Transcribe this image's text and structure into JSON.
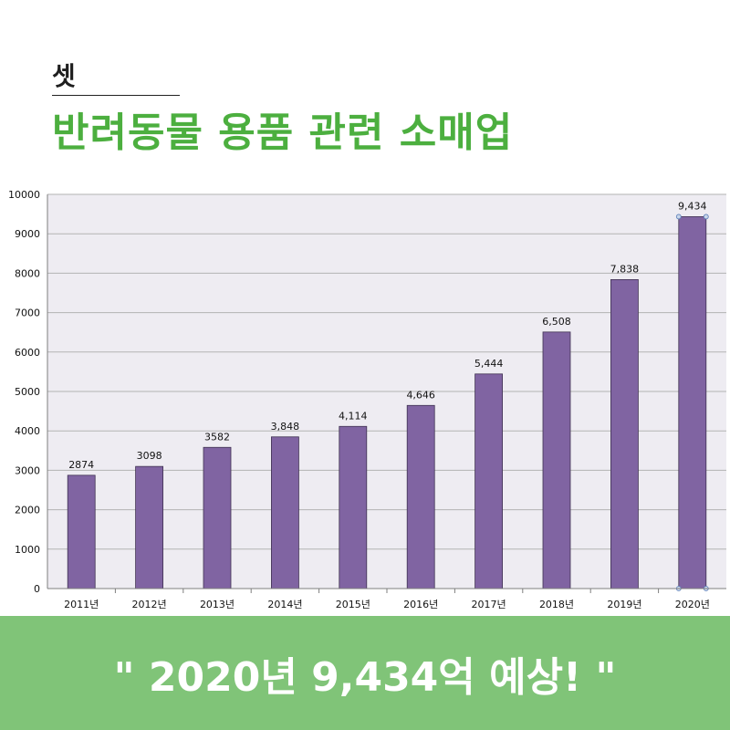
{
  "header": {
    "kicker": "셋",
    "title": "반려동물 용품 관련 소매업"
  },
  "banner": {
    "text": "\" 2020년 9,434억 예상! \""
  },
  "colors": {
    "bar": "#8064a2",
    "headline": "#4caf3f",
    "banner": "#80c478",
    "plot_bg": "#eeecf2"
  },
  "chart_data": {
    "type": "bar",
    "categories": [
      "2011년",
      "2012년",
      "2013년",
      "2014년",
      "2015년",
      "2016년",
      "2017년",
      "2018년",
      "2019년",
      "2020년"
    ],
    "values": [
      2874,
      3098,
      3582,
      3848,
      4114,
      4646,
      5444,
      6508,
      7838,
      9434
    ],
    "data_labels": [
      "2874",
      "3098",
      "3582",
      "3,848",
      "4,114",
      "4,646",
      "5,444",
      "6,508",
      "7,838",
      "9,434"
    ],
    "yticks": [
      "0",
      "1000",
      "2000",
      "3000",
      "4000",
      "5000",
      "6000",
      "7000",
      "8000",
      "9000",
      "10000"
    ],
    "ylim": [
      0,
      10000
    ],
    "grid": true,
    "legend": "none"
  }
}
